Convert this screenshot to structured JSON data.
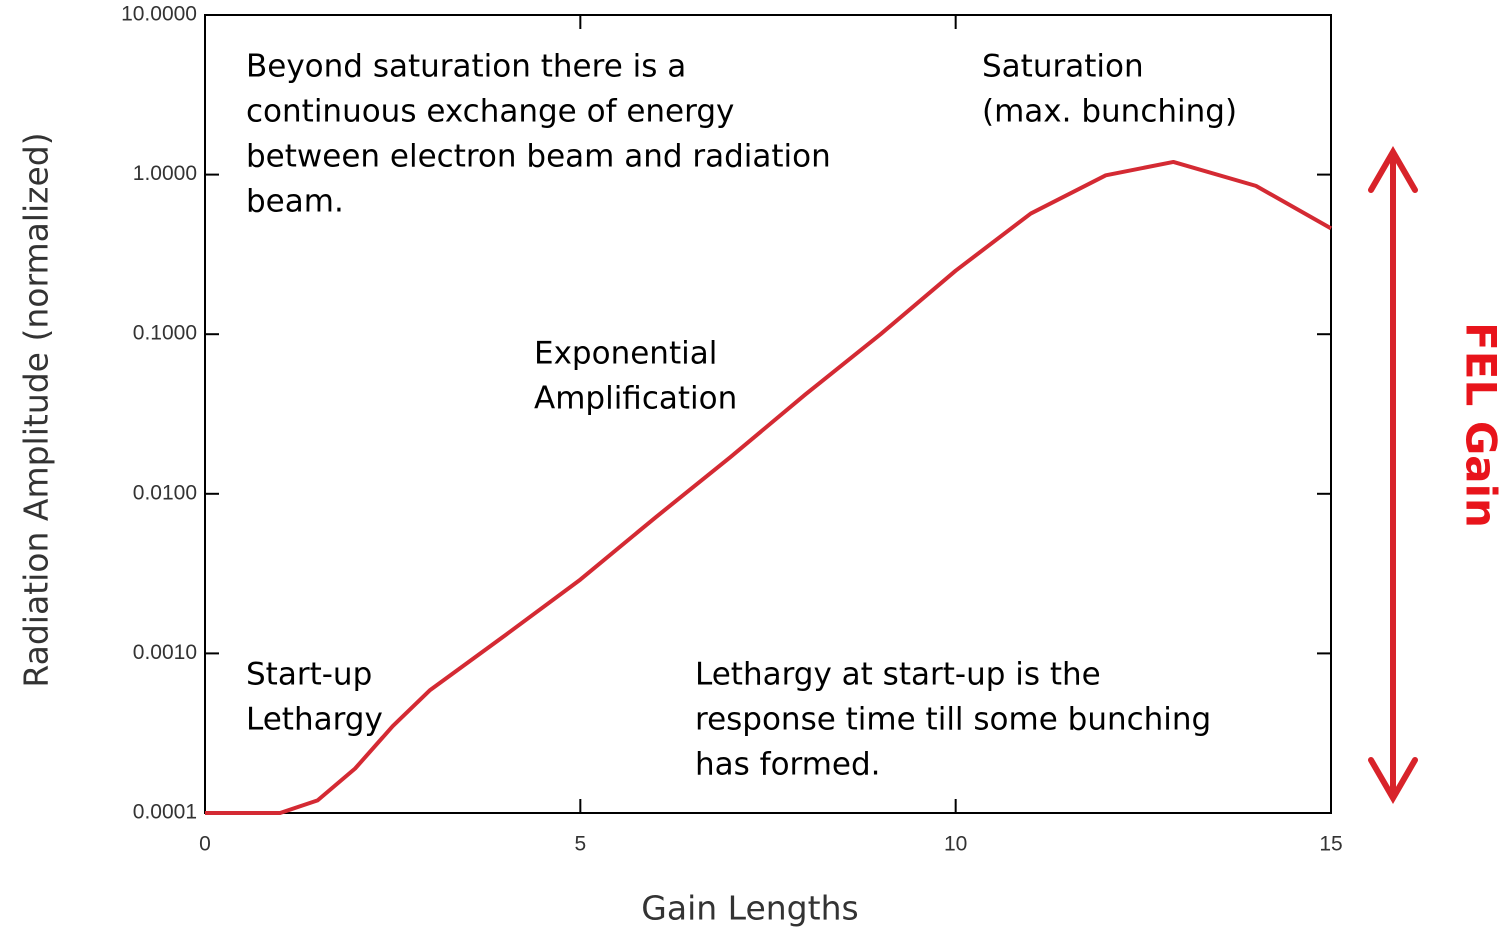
{
  "chart_data": {
    "type": "line",
    "x_label": "Gain Lengths",
    "y_label": "Radiation Amplitude (normalized)",
    "side_label": "FEL Gain",
    "log_y": true,
    "xlim": [
      0,
      15
    ],
    "ylim": [
      0.0001,
      10
    ],
    "xticks": [
      0,
      5,
      10,
      15
    ],
    "yticks": [
      {
        "value": 10,
        "label": "10.0000"
      },
      {
        "value": 1,
        "label": "1.0000"
      },
      {
        "value": 0.1,
        "label": "0.1000"
      },
      {
        "value": 0.01,
        "label": "0.0100"
      },
      {
        "value": 0.001,
        "label": "0.0010"
      },
      {
        "value": 0.0001,
        "label": "0.0001"
      }
    ],
    "series": [
      {
        "color": "#d42a33",
        "x": [
          0,
          1,
          1.5,
          2,
          2.5,
          3,
          4,
          5,
          6,
          7,
          8,
          9,
          10,
          11,
          12,
          12.9,
          14,
          15
        ],
        "values": [
          0.0001,
          0.0001,
          0.00012,
          0.00019,
          0.00035,
          0.00059,
          0.0013,
          0.0029,
          0.0071,
          0.017,
          0.042,
          0.1,
          0.25,
          0.57,
          0.99,
          1.2,
          0.85,
          0.46
        ]
      }
    ],
    "annotations": [
      [
        "Beyond saturation there is a",
        "continuous exchange of energy",
        "between electron beam and radiation",
        "beam."
      ],
      [
        "Saturation",
        "(max. bunching)"
      ],
      [
        "Exponential",
        "Amplification"
      ],
      [
        "Start-up",
        "Lethargy"
      ],
      [
        "Lethargy at start-up is the",
        "response time till some bunching",
        "has formed."
      ]
    ]
  }
}
